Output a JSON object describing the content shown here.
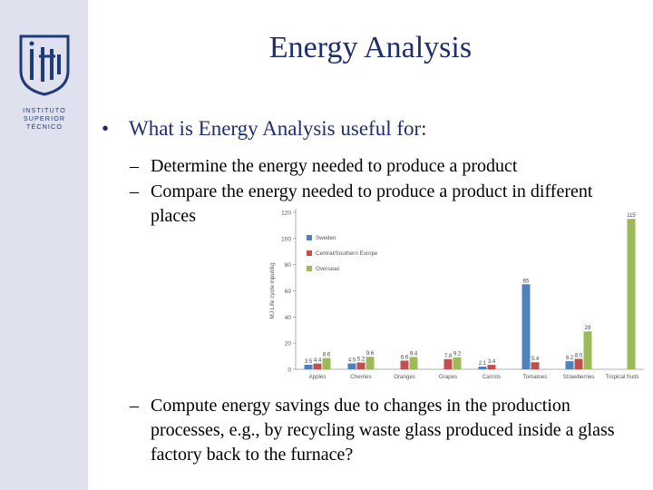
{
  "logo": {
    "lines": [
      "INSTITUTO",
      "SUPERIOR",
      "TÉCNICO"
    ]
  },
  "colors": {
    "title": "#1f2e6e",
    "sidebar": "#dfe1ef",
    "sweden": "#4f81bd",
    "central_southern_europe": "#c0504d",
    "overseas": "#9bbb59"
  },
  "slide": {
    "title": "Energy Analysis",
    "bullet": "What is Energy Analysis useful for:",
    "subbullets": [
      "Determine the energy needed to produce a product",
      "Compare the energy needed to produce a product in different places",
      "Compute energy savings due to changes in the production processes, e.g., by recycling waste glass produced inside a glass factory back to the furnace?"
    ]
  },
  "chart_data": {
    "type": "bar",
    "ylabel": "MJ Life cycle input/kg",
    "ylim": [
      0,
      120
    ],
    "yticks": [
      0,
      20,
      40,
      60,
      80,
      100,
      120
    ],
    "categories": [
      "Apples",
      "Cherries",
      "Oranges",
      "Grapes",
      "Carrots",
      "Tomatoes",
      "Strawberries",
      "Tropical fruits"
    ],
    "series": [
      {
        "name": "Sweden",
        "values": [
          3.5,
          4.5,
          null,
          null,
          2.1,
          65,
          6.2,
          null
        ],
        "labels": [
          "3.5",
          "4.5",
          "",
          "",
          "2.1",
          "65",
          "6.2",
          ""
        ]
      },
      {
        "name": "Central/Southern Europe",
        "values": [
          4.4,
          5.2,
          6.6,
          7.8,
          3.4,
          5.4,
          8.0,
          null
        ],
        "labels": [
          "4.4",
          "5.2",
          "6.6",
          "7.8",
          "3.4",
          "5.4",
          "8.0",
          ""
        ]
      },
      {
        "name": "Overseas",
        "values": [
          8.6,
          9.6,
          9.4,
          9.2,
          null,
          null,
          29,
          115
        ],
        "labels": [
          "8.6",
          "9.6",
          "9.4",
          "9.2",
          "",
          "",
          "29",
          "115"
        ]
      }
    ],
    "legend": "top-left"
  }
}
